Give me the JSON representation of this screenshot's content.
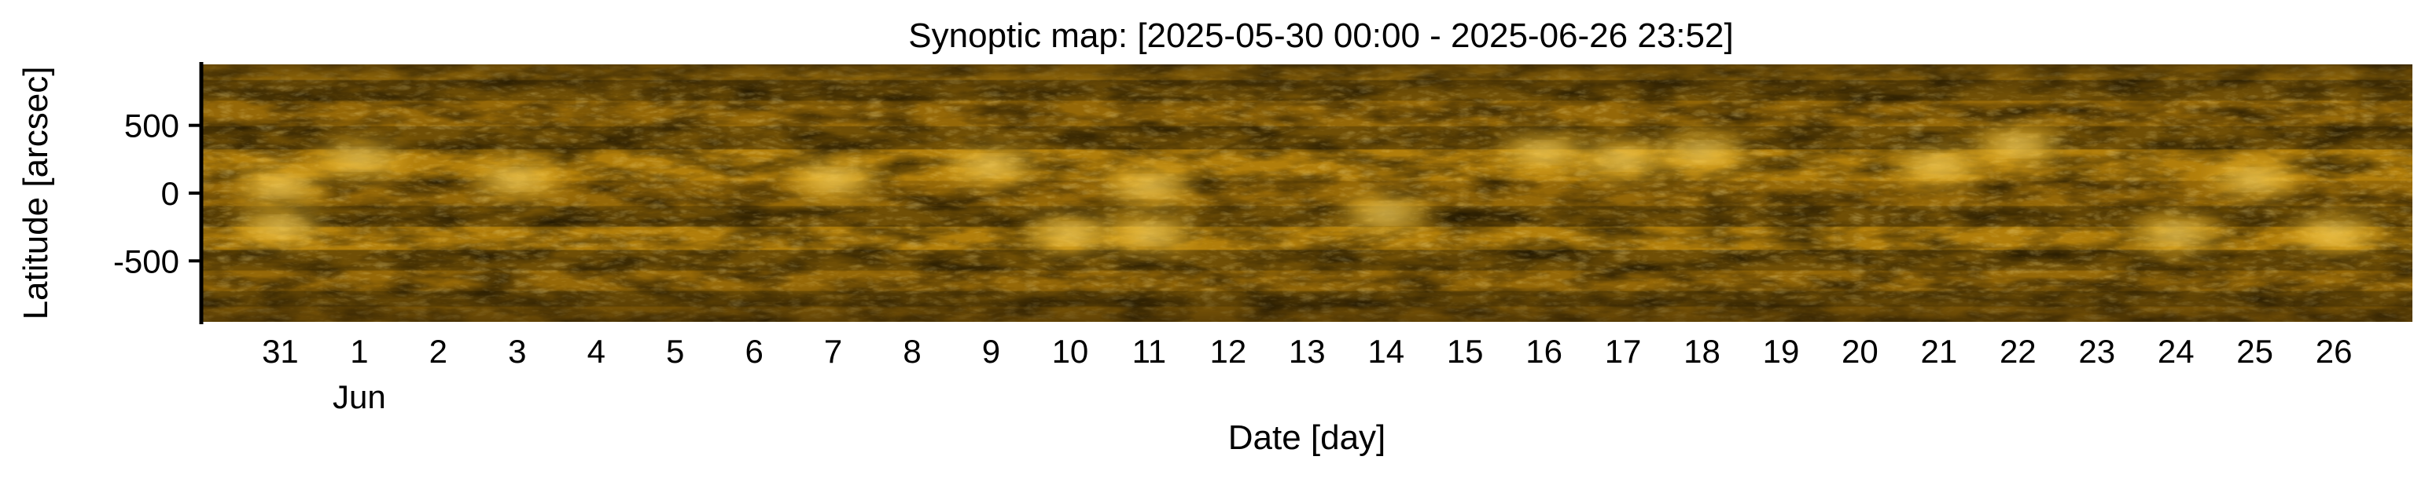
{
  "chart_data": {
    "type": "heatmap",
    "title": "Synoptic map: [2025-05-30 00:00 - 2025-06-26 23:52]",
    "xlabel": "Date [day]",
    "ylabel": "Latitude [arcsec]",
    "x_ticks": [
      {
        "date": "2025-05-31",
        "label": "31"
      },
      {
        "date": "2025-06-01",
        "label": "1",
        "sublabel": "Jun"
      },
      {
        "date": "2025-06-02",
        "label": "2"
      },
      {
        "date": "2025-06-03",
        "label": "3"
      },
      {
        "date": "2025-06-04",
        "label": "4"
      },
      {
        "date": "2025-06-05",
        "label": "5"
      },
      {
        "date": "2025-06-06",
        "label": "6"
      },
      {
        "date": "2025-06-07",
        "label": "7"
      },
      {
        "date": "2025-06-08",
        "label": "8"
      },
      {
        "date": "2025-06-09",
        "label": "9"
      },
      {
        "date": "2025-06-10",
        "label": "10"
      },
      {
        "date": "2025-06-11",
        "label": "11"
      },
      {
        "date": "2025-06-12",
        "label": "12"
      },
      {
        "date": "2025-06-13",
        "label": "13"
      },
      {
        "date": "2025-06-14",
        "label": "14"
      },
      {
        "date": "2025-06-15",
        "label": "15"
      },
      {
        "date": "2025-06-16",
        "label": "16"
      },
      {
        "date": "2025-06-17",
        "label": "17"
      },
      {
        "date": "2025-06-18",
        "label": "18"
      },
      {
        "date": "2025-06-19",
        "label": "19"
      },
      {
        "date": "2025-06-20",
        "label": "20"
      },
      {
        "date": "2025-06-21",
        "label": "21"
      },
      {
        "date": "2025-06-22",
        "label": "22"
      },
      {
        "date": "2025-06-23",
        "label": "23"
      },
      {
        "date": "2025-06-24",
        "label": "24"
      },
      {
        "date": "2025-06-25",
        "label": "25"
      },
      {
        "date": "2025-06-26",
        "label": "26"
      }
    ],
    "y_ticks": [
      500,
      0,
      -500
    ],
    "xlim": [
      "2025-05-30 00:00",
      "2025-06-26 23:52"
    ],
    "ylim": [
      -950,
      950
    ],
    "colormap": "dark brown to bright gold",
    "colors": [
      "#1e1402",
      "#5a3f05",
      "#9c6e0a",
      "#cf960f",
      "#f5c236",
      "#ffe690"
    ],
    "bright_regions": [
      {
        "date": "2025-06-01",
        "lat": 250
      },
      {
        "date": "2025-05-31",
        "lat": 50
      },
      {
        "date": "2025-05-31",
        "lat": -250
      },
      {
        "date": "2025-06-03",
        "lat": 100
      },
      {
        "date": "2025-06-07",
        "lat": 100
      },
      {
        "date": "2025-06-09",
        "lat": 200
      },
      {
        "date": "2025-06-10",
        "lat": -300
      },
      {
        "date": "2025-06-11",
        "lat": -300
      },
      {
        "date": "2025-06-11",
        "lat": 50
      },
      {
        "date": "2025-06-14",
        "lat": -150
      },
      {
        "date": "2025-06-16",
        "lat": 300
      },
      {
        "date": "2025-06-17",
        "lat": 250
      },
      {
        "date": "2025-06-18",
        "lat": 300
      },
      {
        "date": "2025-06-21",
        "lat": 200
      },
      {
        "date": "2025-06-22",
        "lat": 350
      },
      {
        "date": "2025-06-24",
        "lat": -300
      },
      {
        "date": "2025-06-25",
        "lat": 100
      },
      {
        "date": "2025-06-26",
        "lat": -300
      }
    ]
  }
}
